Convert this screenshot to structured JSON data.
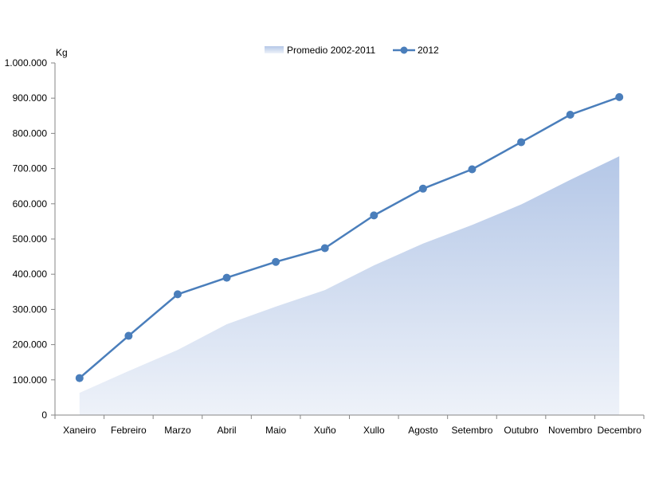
{
  "chart_data": {
    "type": "line",
    "title": "",
    "xlabel": "",
    "ylabel": "Kg",
    "ylim": [
      0,
      1000000
    ],
    "yticks": [
      0,
      100000,
      200000,
      300000,
      400000,
      500000,
      600000,
      700000,
      800000,
      900000,
      1000000
    ],
    "ytick_labels": [
      "0",
      "100.000",
      "200.000",
      "300.000",
      "400.000",
      "500.000",
      "600.000",
      "700.000",
      "800.000",
      "900.000",
      "1.000.000"
    ],
    "categories": [
      "Xaneiro",
      "Febreiro",
      "Marzo",
      "Abril",
      "Maio",
      "Xuño",
      "Xullo",
      "Agosto",
      "Setembro",
      "Outubro",
      "Novembro",
      "Decembro"
    ],
    "grid": false,
    "legend_position": "top",
    "series": [
      {
        "name": "Promedio 2002-2011",
        "type": "area",
        "color": "#b4c7e7",
        "values": [
          63000,
          125000,
          185000,
          258000,
          308000,
          355000,
          425000,
          487000,
          540000,
          598000,
          668000,
          735000
        ]
      },
      {
        "name": "2012",
        "type": "line",
        "color": "#4a7ebb",
        "values": [
          105000,
          225000,
          343000,
          390000,
          435000,
          474000,
          567000,
          643000,
          698000,
          775000,
          853000,
          903000
        ]
      }
    ]
  }
}
